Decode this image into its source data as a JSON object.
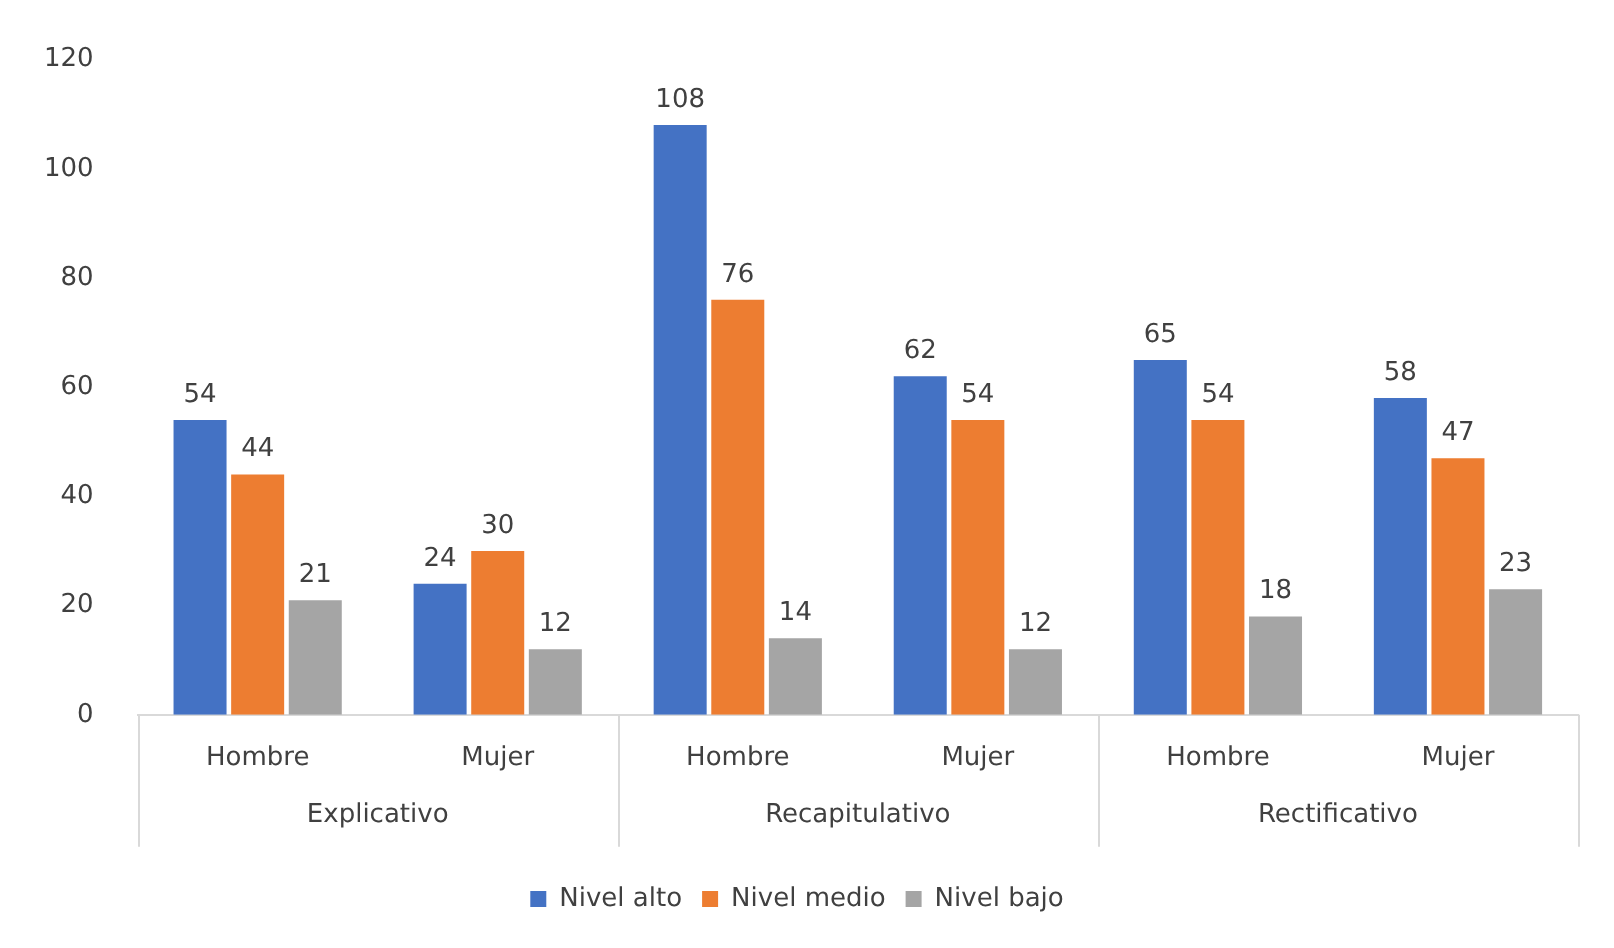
{
  "chart_data": {
    "type": "bar",
    "categories": [
      "Hombre",
      "Mujer",
      "Hombre",
      "Mujer",
      "Hombre",
      "Mujer"
    ],
    "annotations": [
      "Explicativo",
      "Recapitulativo",
      "Rectificativo"
    ],
    "series": [
      {
        "name": "Nivel alto",
        "color": "#4472c4",
        "values": [
          54,
          24,
          108,
          62,
          65,
          58
        ]
      },
      {
        "name": "Nivel medio",
        "color": "#ed7d31",
        "values": [
          44,
          30,
          76,
          54,
          54,
          47
        ]
      },
      {
        "name": "Nivel bajo",
        "color": "#a5a5a5",
        "values": [
          21,
          12,
          14,
          12,
          18,
          23
        ]
      }
    ],
    "ylim": [
      0,
      120
    ],
    "yticks": [
      0,
      20,
      40,
      60,
      80,
      100,
      120
    ],
    "grid": false,
    "legend": "bottom",
    "data_labels": true
  }
}
